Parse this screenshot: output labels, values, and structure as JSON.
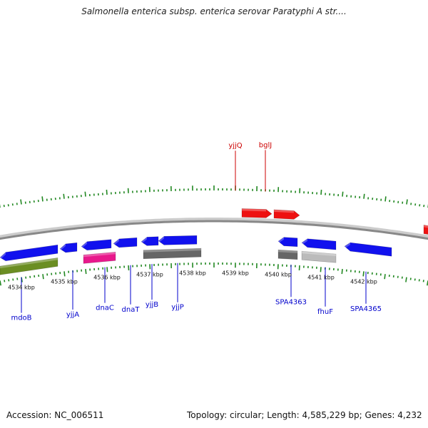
{
  "header": {
    "title": "Salmonella enterica subsp. enterica serovar Paratyphi A str...."
  },
  "footer": {
    "accession_text": "Accession: NC_006511",
    "stats_text": "Topology: circular; Length: 4,585,229 bp; Genes: 4,232"
  },
  "map": {
    "start_kbp": 4533.5,
    "end_kbp": 4543.5,
    "scale_labels": [
      {
        "kbp": 4534,
        "label": "4534 kbp"
      },
      {
        "kbp": 4535,
        "label": "4535 kbp"
      },
      {
        "kbp": 4536,
        "label": "4536 kbp"
      },
      {
        "kbp": 4537,
        "label": "4537 kbp"
      },
      {
        "kbp": 4538,
        "label": "4538 kbp"
      },
      {
        "kbp": 4539,
        "label": "4539 kbp"
      },
      {
        "kbp": 4540,
        "label": "4540 kbp"
      },
      {
        "kbp": 4541,
        "label": "4541 kbp"
      },
      {
        "kbp": 4542,
        "label": "4542 kbp"
      }
    ],
    "colors": {
      "forward_gene": "#ee1111",
      "reverse_gene": "#1111ee",
      "forward_label": "#cc0000",
      "reverse_label": "#0000cc",
      "tick": "#228822",
      "backbone": "#888888",
      "rna_gene": "#6b8e23",
      "pink_feature": "#e8198c",
      "dark_feature": "#666666",
      "light_feature": "#bbbbbb"
    },
    "genes": [
      {
        "name": "",
        "strand": "+",
        "start": 4539.15,
        "end": 4539.85,
        "type": "cds"
      },
      {
        "name": "",
        "strand": "+",
        "start": 4539.9,
        "end": 4540.5,
        "type": "cds"
      },
      {
        "name": "",
        "strand": "+",
        "start": 4543.4,
        "end": 4543.6,
        "type": "cds"
      },
      {
        "name": "",
        "strand": "-",
        "start": 4533.5,
        "end": 4534.85,
        "type": "cds"
      },
      {
        "name": "",
        "strand": "-",
        "start": 4534.9,
        "end": 4535.3,
        "type": "cds"
      },
      {
        "name": "",
        "strand": "-",
        "start": 4535.4,
        "end": 4536.1,
        "type": "cds"
      },
      {
        "name": "",
        "strand": "-",
        "start": 4536.15,
        "end": 4536.7,
        "type": "cds"
      },
      {
        "name": "",
        "strand": "-",
        "start": 4536.8,
        "end": 4537.2,
        "type": "cds"
      },
      {
        "name": "",
        "strand": "-",
        "start": 4537.2,
        "end": 4538.1,
        "type": "cds"
      },
      {
        "name": "",
        "strand": "-",
        "start": 4540.0,
        "end": 4540.45,
        "type": "cds"
      },
      {
        "name": "",
        "strand": "-",
        "start": 4540.55,
        "end": 4541.35,
        "type": "cds"
      },
      {
        "name": "",
        "strand": "-",
        "start": 4541.55,
        "end": 4542.65,
        "type": "cds"
      },
      {
        "name": "",
        "strand": "-",
        "start": 4533.5,
        "end": 4534.85,
        "type": "rna"
      },
      {
        "name": "",
        "strand": "-",
        "start": 4535.45,
        "end": 4536.2,
        "type": "pink"
      },
      {
        "name": "",
        "strand": "-",
        "start": 4536.85,
        "end": 4538.2,
        "type": "dark"
      },
      {
        "name": "",
        "strand": "-",
        "start": 4540.0,
        "end": 4540.45,
        "type": "dark"
      },
      {
        "name": "",
        "strand": "-",
        "start": 4540.55,
        "end": 4541.35,
        "type": "light"
      }
    ],
    "gene_labels": [
      {
        "text": "yjjQ",
        "strand": "+",
        "kbp": 4539.0
      },
      {
        "text": "bglJ",
        "strand": "+",
        "kbp": 4539.7
      },
      {
        "text": "mdoB",
        "strand": "-",
        "kbp": 4534.0
      },
      {
        "text": "yjjA",
        "strand": "-",
        "kbp": 4535.2
      },
      {
        "text": "dnaC",
        "strand": "-",
        "kbp": 4535.95
      },
      {
        "text": "dnaT",
        "strand": "-",
        "kbp": 4536.55
      },
      {
        "text": "yjjB",
        "strand": "-",
        "kbp": 4537.05
      },
      {
        "text": "yjjP",
        "strand": "-",
        "kbp": 4537.65
      },
      {
        "text": "SPA4363",
        "strand": "-",
        "kbp": 4540.3
      },
      {
        "text": "fhuF",
        "strand": "-",
        "kbp": 4541.1
      },
      {
        "text": "SPA4365",
        "strand": "-",
        "kbp": 4542.05
      }
    ]
  }
}
